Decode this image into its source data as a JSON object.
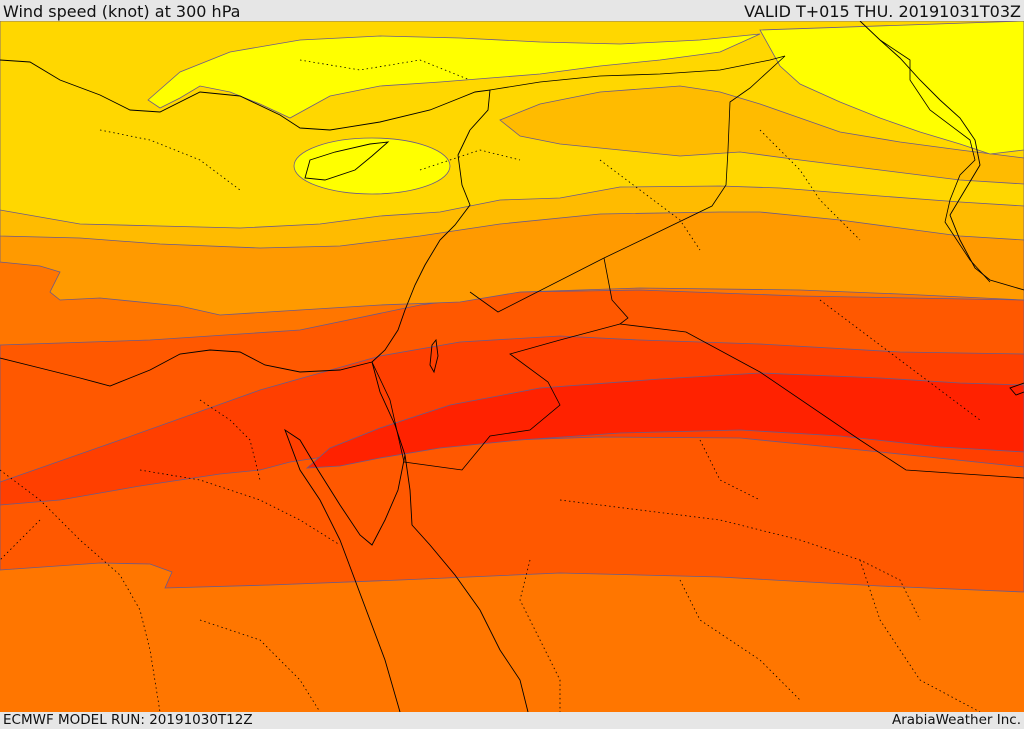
{
  "header": {
    "title": "Wind speed (knot) at 300 hPa",
    "valid_time": "VALID T+015 THU. 20191031T03Z"
  },
  "footer": {
    "model_run": "ECMWF MODEL RUN: 20191030T12Z",
    "credit": "ArabiaWeather Inc."
  },
  "map": {
    "field": "wind speed 300 hPa",
    "palette": {
      "band_1": "#ffff00",
      "band_2": "#ffd700",
      "band_3": "#ffbb00",
      "band_4": "#ff9a00",
      "band_5": "#ff7600",
      "band_6": "#ff5800",
      "band_7": "#ff3f00",
      "band_8": "#ff2200",
      "contour_line": "#6a5a8a",
      "border_line": "#000000"
    }
  }
}
